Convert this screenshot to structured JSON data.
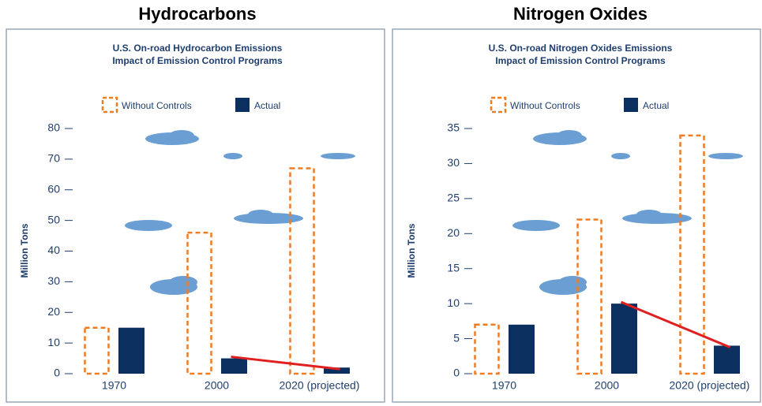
{
  "chart_data": [
    {
      "type": "bar",
      "heading": "Hydrocarbons",
      "title": "U.S. On-road Hydrocarbon Emissions",
      "subtitle": "Impact of Emission Control Programs",
      "y_label": "Million Tons",
      "categories": [
        "1970",
        "2000",
        "2020 (projected)"
      ],
      "series": [
        {
          "name": "Without Controls",
          "color": "#f07c22",
          "style": "dashed-outline",
          "values": [
            15,
            46,
            67
          ]
        },
        {
          "name": "Actual",
          "color": "#0b2f5e",
          "style": "solid",
          "values": [
            15,
            5,
            2
          ]
        }
      ],
      "ylim": [
        0,
        80
      ],
      "yticks": [
        0,
        10,
        20,
        30,
        40,
        50,
        60,
        70,
        80
      ],
      "trend_color": "#e02020"
    },
    {
      "type": "bar",
      "heading": "Nitrogen Oxides",
      "title": "U.S. On-road Nitrogen Oxides Emissions",
      "subtitle": "Impact of Emission Control Programs",
      "y_label": "Million Tons",
      "categories": [
        "1970",
        "2000",
        "2020 (projected)"
      ],
      "series": [
        {
          "name": "Without Controls",
          "color": "#f07c22",
          "style": "dashed-outline",
          "values": [
            7,
            22,
            34
          ]
        },
        {
          "name": "Actual",
          "color": "#0b2f5e",
          "style": "solid",
          "values": [
            7,
            10,
            4
          ]
        }
      ],
      "ylim": [
        0,
        35
      ],
      "yticks": [
        0,
        5,
        10,
        15,
        20,
        25,
        30,
        35
      ],
      "trend_color": "#e02020"
    }
  ]
}
